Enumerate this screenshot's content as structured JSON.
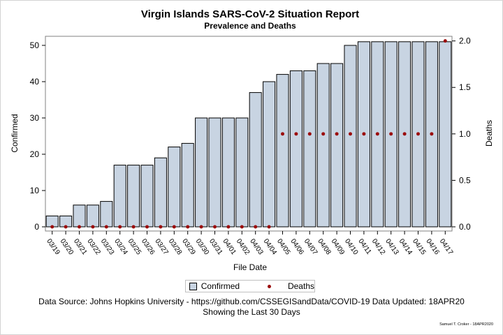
{
  "chart_data": {
    "type": "bar",
    "title": "Virgin Islands SARS-CoV-2 Situation Report",
    "subtitle": "Prevalence and Deaths",
    "xlabel": "File Date",
    "ylabel": "Confirmed",
    "y2label": "Deaths",
    "categories": [
      "03/19",
      "03/20",
      "03/21",
      "03/22",
      "03/23",
      "03/24",
      "03/25",
      "03/26",
      "03/27",
      "03/28",
      "03/29",
      "03/30",
      "03/31",
      "04/01",
      "04/02",
      "04/03",
      "04/04",
      "04/05",
      "04/06",
      "04/07",
      "04/08",
      "04/09",
      "04/10",
      "04/11",
      "04/12",
      "04/13",
      "04/14",
      "04/15",
      "04/16",
      "04/17"
    ],
    "series": [
      {
        "name": "Confirmed",
        "type": "bar",
        "axis": "left",
        "values": [
          3,
          3,
          6,
          6,
          7,
          17,
          17,
          17,
          19,
          22,
          23,
          30,
          30,
          30,
          30,
          37,
          40,
          42,
          43,
          43,
          45,
          45,
          50,
          51,
          51,
          51,
          51,
          51,
          51,
          51
        ]
      },
      {
        "name": "Deaths",
        "type": "scatter",
        "axis": "right",
        "values": [
          0,
          0,
          0,
          0,
          0,
          0,
          0,
          0,
          0,
          0,
          0,
          0,
          0,
          0,
          0,
          0,
          0,
          1,
          1,
          1,
          1,
          1,
          1,
          1,
          1,
          1,
          1,
          1,
          1,
          2
        ]
      }
    ],
    "ylim": [
      0,
      52.5
    ],
    "y2lim": [
      0,
      2.05
    ],
    "yticks": [
      0,
      10,
      20,
      30,
      40,
      50
    ],
    "y2ticks": [
      "0.0",
      "0.5",
      "1.0",
      "1.5",
      "2.0"
    ],
    "legend_position": "bottom",
    "grid": false,
    "colors": {
      "bar_fill": "#c8d4e2",
      "bar_edge": "#000000",
      "marker": "#9b0d0d"
    }
  },
  "footer": {
    "source": "Data Source: Johns Hopkins University - https://github.com/CSSEGISandData/COVID-19 Data Updated: 18APR20",
    "note": "Showing the Last 30 Days",
    "credit": "Samuel T. Croker - 18APR2020"
  }
}
